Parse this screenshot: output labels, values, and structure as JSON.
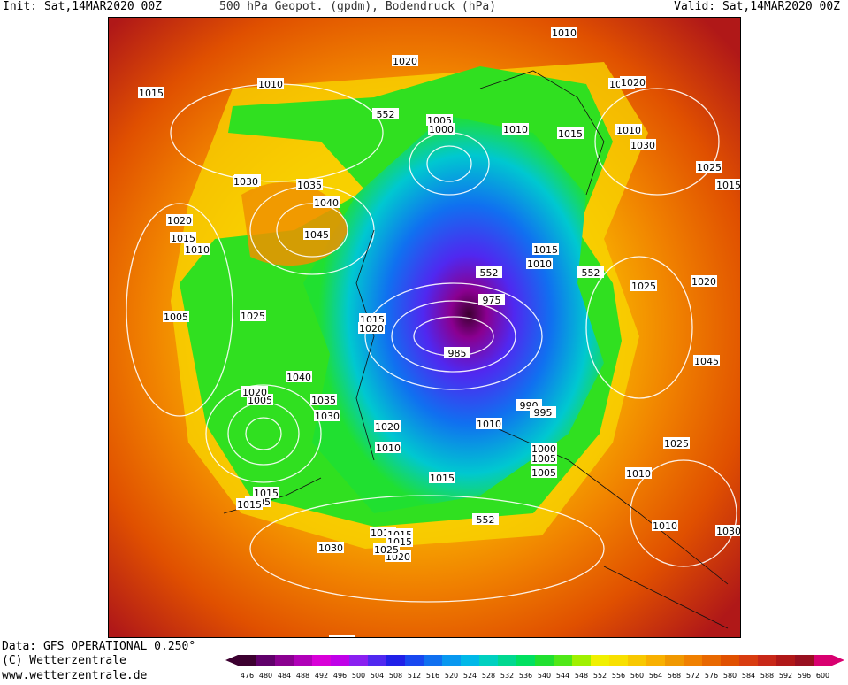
{
  "header": {
    "init": "Init: Sat,14MAR2020 00Z",
    "title": "500 hPa Geopot. (gpdm), Bodendruck (hPa)",
    "valid": "Valid: Sat,14MAR2020 00Z"
  },
  "footer": {
    "line1": "Data: GFS OPERATIONAL 0.250°",
    "line2": "(C) Wetterzentrale",
    "line3": "www.wetterzentrale.de"
  },
  "legend": {
    "ticks": [
      "476",
      "480",
      "484",
      "488",
      "492",
      "496",
      "500",
      "504",
      "508",
      "512",
      "516",
      "520",
      "524",
      "528",
      "532",
      "536",
      "540",
      "544",
      "548",
      "552",
      "556",
      "560",
      "564",
      "568",
      "572",
      "576",
      "580",
      "584",
      "588",
      "592",
      "596",
      "600"
    ],
    "colors": [
      "#3c0030",
      "#60006a",
      "#8a0090",
      "#b000b8",
      "#d800d8",
      "#c000e8",
      "#8a20f0",
      "#5028f0",
      "#2020e8",
      "#1848f0",
      "#1070f0",
      "#0898f0",
      "#00b8e8",
      "#00d0c0",
      "#00d890",
      "#00e060",
      "#20e030",
      "#50e818",
      "#a0f000",
      "#f0f000",
      "#f8e000",
      "#f8c800",
      "#f8b000",
      "#f09800",
      "#f08000",
      "#e86800",
      "#e05000",
      "#d83c10",
      "#c82818",
      "#b01818",
      "#981020",
      "#d80070"
    ]
  },
  "contour_labels": [
    "1010",
    "1020",
    "1010",
    "1025",
    "1015",
    "1010",
    "552",
    "1020",
    "1025",
    "552",
    "1005",
    "1000",
    "1010",
    "1015",
    "1030",
    "1025",
    "1030",
    "1035",
    "1040",
    "1020",
    "1045",
    "1015",
    "1010",
    "1005",
    "1015",
    "1010",
    "552",
    "1025",
    "1020",
    "1045",
    "1015",
    "1020",
    "975",
    "1025",
    "985",
    "1040",
    "1005",
    "1020",
    "1035",
    "990",
    "995",
    "1030",
    "1020",
    "1010",
    "1025",
    "1000",
    "1005",
    "1010",
    "1010",
    "1015",
    "1005",
    "1015",
    "1005",
    "1010",
    "552",
    "1010",
    "1015",
    "1015",
    "1030",
    "1020",
    "1025",
    "1030",
    "1015",
    "1015",
    "1015"
  ]
}
